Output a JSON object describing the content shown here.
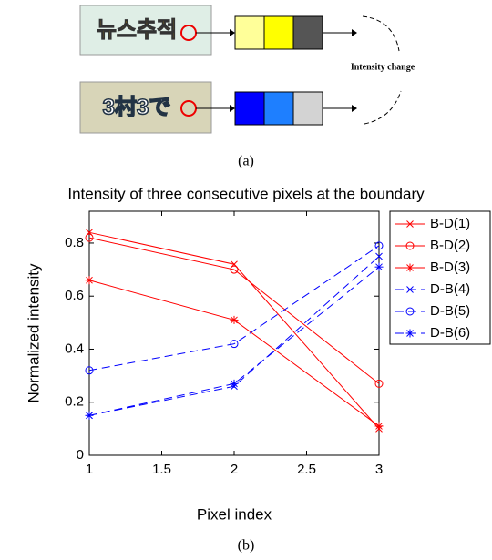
{
  "diagram": {
    "images": [
      "뉴스추적",
      "3村3で"
    ],
    "label": "Intensity change",
    "caption": "(a)"
  },
  "chart_data": {
    "type": "line",
    "title": "Intensity of three consecutive pixels at the boundary",
    "x_label": "Pixel index",
    "y_label": "Normalized intensity",
    "x": [
      1,
      2,
      3
    ],
    "xlim": [
      1,
      3
    ],
    "xticks": [
      1,
      1.5,
      2,
      2.5,
      3
    ],
    "ylim": [
      0,
      0.92
    ],
    "yticks": [
      0,
      0.2,
      0.4,
      0.6,
      0.8
    ],
    "legend": "outside-right",
    "series": [
      {
        "name": "B-D(1)",
        "color": "#ff0000",
        "marker": "x",
        "dash": "solid",
        "values": [
          0.84,
          0.72,
          0.1
        ]
      },
      {
        "name": "B-D(2)",
        "color": "#ff0000",
        "marker": "o",
        "dash": "solid",
        "values": [
          0.82,
          0.7,
          0.27
        ]
      },
      {
        "name": "B-D(3)",
        "color": "#ff0000",
        "marker": "*",
        "dash": "solid",
        "values": [
          0.66,
          0.51,
          0.11
        ]
      },
      {
        "name": "D-B(4)",
        "color": "#0000ff",
        "marker": "x",
        "dash": "dashed",
        "values": [
          0.15,
          0.26,
          0.75
        ]
      },
      {
        "name": "D-B(5)",
        "color": "#0000ff",
        "marker": "o",
        "dash": "dashed",
        "values": [
          0.32,
          0.42,
          0.79
        ]
      },
      {
        "name": "D-B(6)",
        "color": "#0000ff",
        "marker": "*",
        "dash": "dashed",
        "values": [
          0.15,
          0.27,
          0.71
        ]
      }
    ]
  },
  "caption": "(b)"
}
